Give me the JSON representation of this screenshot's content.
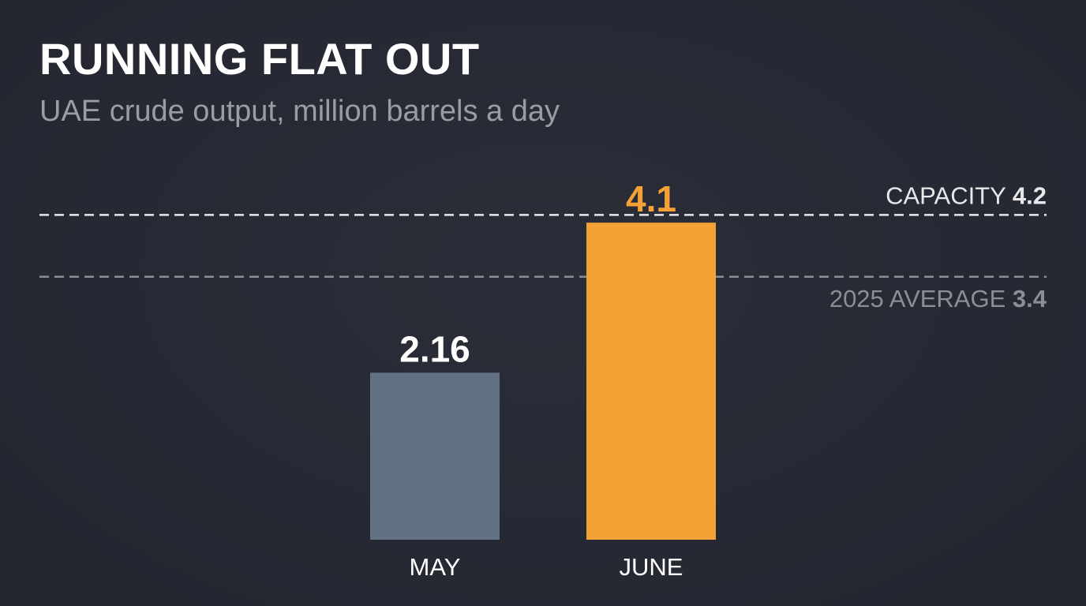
{
  "colors": {
    "background": "#262833",
    "title": "#ffffff",
    "subtitle": "#9a9ca4",
    "may_bar": "#637184",
    "june_bar": "#f4a235",
    "capacity_line": "#e8e8ea",
    "average_line": "#8c8e96"
  },
  "chart_data": {
    "type": "bar",
    "title": "RUNNING FLAT OUT",
    "subtitle": "UAE crude output, million barrels a day",
    "categories": [
      "MAY",
      "JUNE"
    ],
    "values": [
      2.16,
      4.1
    ],
    "value_labels": [
      "2.16",
      "4.1"
    ],
    "bar_colors": [
      "#637184",
      "#f4a235"
    ],
    "value_label_colors": [
      "#ffffff",
      "#f4a235"
    ],
    "ylim": [
      0,
      4.2
    ],
    "grid": false,
    "reference_lines": [
      {
        "label": "CAPACITY",
        "value": 4.2,
        "value_label": "4.2",
        "style": "dashed",
        "color": "#e8e8ea"
      },
      {
        "label": "2025 AVERAGE",
        "value": 3.4,
        "value_label": "3.4",
        "style": "dashed",
        "color": "#8c8e96"
      }
    ]
  }
}
